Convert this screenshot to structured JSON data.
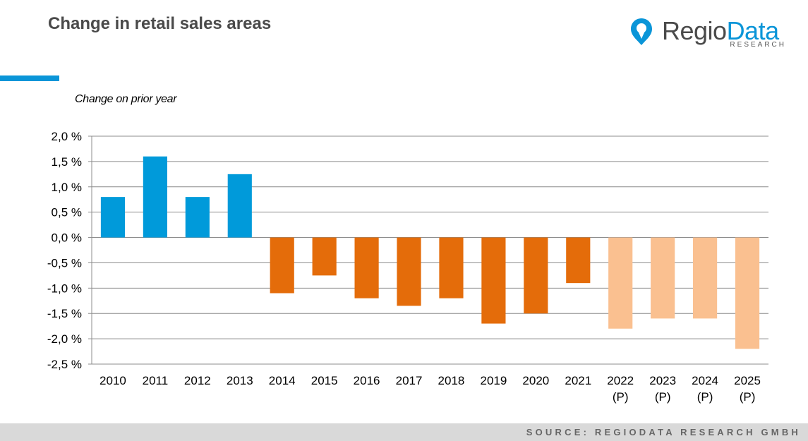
{
  "header": {
    "title": "Change in retail sales areas"
  },
  "logo": {
    "name_part1": "Regio",
    "name_part2": "Data",
    "sub": "RESEARCH",
    "icon": "map-pin-icon"
  },
  "colors": {
    "accent": "#0a95d8",
    "historic_early": "#009ada",
    "historic_late": "#e46c0a",
    "projection": "#fac090",
    "logo_dark": "#4a4a4a",
    "grid": "#8c8c8c"
  },
  "footer": {
    "source": "SOURCE: REGIODATA RESEARCH GMBH"
  },
  "chart_data": {
    "type": "bar",
    "title": "",
    "subtitle": "Change on prior year",
    "xlabel": "",
    "ylabel": "",
    "ylim": [
      -2.5,
      2.0
    ],
    "yticks": [
      2.0,
      1.5,
      1.0,
      0.5,
      0.0,
      -0.5,
      -1.0,
      -1.5,
      -2.0,
      -2.5
    ],
    "ytick_labels": [
      "2,0 %",
      "1,5 %",
      "1,0 %",
      "0,5 %",
      "0,0 %",
      "-0,5 %",
      "-1,0 %",
      "-1,5 %",
      "-2,0 %",
      "-2,5 %"
    ],
    "grid": true,
    "categories": [
      [
        "2010"
      ],
      [
        "2011"
      ],
      [
        "2012"
      ],
      [
        "2013"
      ],
      [
        "2014"
      ],
      [
        "2015"
      ],
      [
        "2016"
      ],
      [
        "2017"
      ],
      [
        "2018"
      ],
      [
        "2019"
      ],
      [
        "2020"
      ],
      [
        "2021"
      ],
      [
        "2022",
        "(P)"
      ],
      [
        "2023",
        "(P)"
      ],
      [
        "2024",
        "(P)"
      ],
      [
        "2025",
        "(P)"
      ]
    ],
    "values": [
      0.8,
      1.6,
      0.8,
      1.25,
      -1.1,
      -0.75,
      -1.2,
      -1.35,
      -1.2,
      -1.7,
      -1.5,
      -0.9,
      -1.8,
      -1.6,
      -1.6,
      -2.2
    ],
    "bar_color_keys": [
      "historic_early",
      "historic_early",
      "historic_early",
      "historic_early",
      "historic_late",
      "historic_late",
      "historic_late",
      "historic_late",
      "historic_late",
      "historic_late",
      "historic_late",
      "historic_late",
      "projection",
      "projection",
      "projection",
      "projection"
    ]
  }
}
